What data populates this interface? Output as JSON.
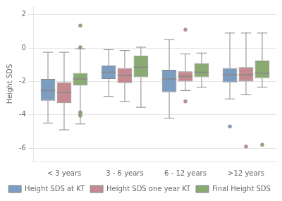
{
  "chart_data": {
    "type": "box",
    "ylabel": "Height SDS",
    "categories": [
      "< 3 years",
      "3 - 6 years",
      "6 - 12 years",
      ">12 years"
    ],
    "series": [
      {
        "name": "Height SDS at KT",
        "color": "#7b9dc0",
        "values": [
          {
            "q1": -3.15,
            "median": -2.55,
            "q3": -1.85,
            "whislo": -4.5,
            "whishi": -0.25,
            "fliers": []
          },
          {
            "q1": -1.85,
            "median": -1.45,
            "q3": -1.05,
            "whislo": -2.9,
            "whishi": -0.1,
            "fliers": []
          },
          {
            "q1": -2.65,
            "median": -1.85,
            "q3": -1.3,
            "whislo": -4.2,
            "whishi": 0.5,
            "fliers": []
          },
          {
            "q1": -2.05,
            "median": -1.6,
            "q3": -1.2,
            "whislo": -3.05,
            "whishi": 0.9,
            "fliers": [
              -4.7
            ]
          }
        ]
      },
      {
        "name": "Height SDS one year KT",
        "color": "#c48a90",
        "values": [
          {
            "q1": -3.3,
            "median": -2.65,
            "q3": -2.05,
            "whislo": -4.9,
            "whishi": -0.25,
            "fliers": []
          },
          {
            "q1": -2.1,
            "median": -1.65,
            "q3": -1.2,
            "whislo": -3.2,
            "whishi": -0.15,
            "fliers": []
          },
          {
            "q1": -2.0,
            "median": -1.7,
            "q3": -1.4,
            "whislo": -2.55,
            "whishi": -0.35,
            "fliers": [
              1.1,
              -3.2
            ]
          },
          {
            "q1": -2.0,
            "median": -1.6,
            "q3": -1.15,
            "whislo": -2.8,
            "whishi": 0.9,
            "fliers": [
              -5.9
            ]
          }
        ]
      },
      {
        "name": "Final Height SDS",
        "color": "#8aaa72",
        "values": [
          {
            "q1": -2.25,
            "median": -1.85,
            "q3": -1.5,
            "whislo": -4.55,
            "whishi": -0.05,
            "fliers": [
              1.35,
              0.05,
              -3.85,
              -3.95,
              -4.05
            ]
          },
          {
            "q1": -1.75,
            "median": -1.15,
            "q3": -0.45,
            "whislo": -3.55,
            "whishi": 0.05,
            "fliers": []
          },
          {
            "q1": -1.75,
            "median": -1.45,
            "q3": -0.9,
            "whislo": -2.35,
            "whishi": -0.3,
            "fliers": []
          },
          {
            "q1": -1.8,
            "median": -1.5,
            "q3": -0.75,
            "whislo": -2.35,
            "whishi": 0.9,
            "fliers": [
              -5.8
            ]
          }
        ]
      }
    ],
    "ylim": [
      -6.8,
      2.5
    ],
    "yticks": [
      -6,
      -4,
      -2,
      0,
      2
    ],
    "grid": true,
    "legend": "bottom"
  }
}
